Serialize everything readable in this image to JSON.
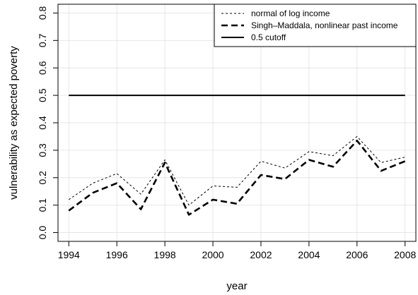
{
  "chart_data": {
    "type": "line",
    "xlabel": "year",
    "ylabel": "vulnerability as expected poverty",
    "xlim": [
      1994,
      2008
    ],
    "ylim": [
      0.0,
      0.8
    ],
    "x_ticks": [
      "1994",
      "1996",
      "1998",
      "2000",
      "2002",
      "2004",
      "2006",
      "2008"
    ],
    "y_ticks": [
      "0.0",
      "0.1",
      "0.2",
      "0.3",
      "0.4",
      "0.5",
      "0.6",
      "0.7",
      "0.8"
    ],
    "grid": true,
    "legend_position": "top-right",
    "x": [
      1994,
      1995,
      1996,
      1997,
      1998,
      1999,
      2000,
      2001,
      2002,
      2003,
      2004,
      2005,
      2006,
      2007,
      2008
    ],
    "series": [
      {
        "name": "normal of log income",
        "style": "dotted-thin",
        "values": [
          0.12,
          0.18,
          0.215,
          0.14,
          0.265,
          0.1,
          0.17,
          0.165,
          0.26,
          0.235,
          0.295,
          0.28,
          0.35,
          0.255,
          0.275
        ]
      },
      {
        "name": "Singh–Maddala, nonlinear past income",
        "style": "dashed-thick",
        "values": [
          0.08,
          0.145,
          0.18,
          0.085,
          0.255,
          0.065,
          0.12,
          0.105,
          0.21,
          0.195,
          0.265,
          0.24,
          0.335,
          0.225,
          0.26
        ]
      },
      {
        "name": "0.5 cutoff",
        "style": "solid",
        "values": [
          0.5,
          0.5,
          0.5,
          0.5,
          0.5,
          0.5,
          0.5,
          0.5,
          0.5,
          0.5,
          0.5,
          0.5,
          0.5,
          0.5,
          0.5
        ]
      }
    ]
  }
}
